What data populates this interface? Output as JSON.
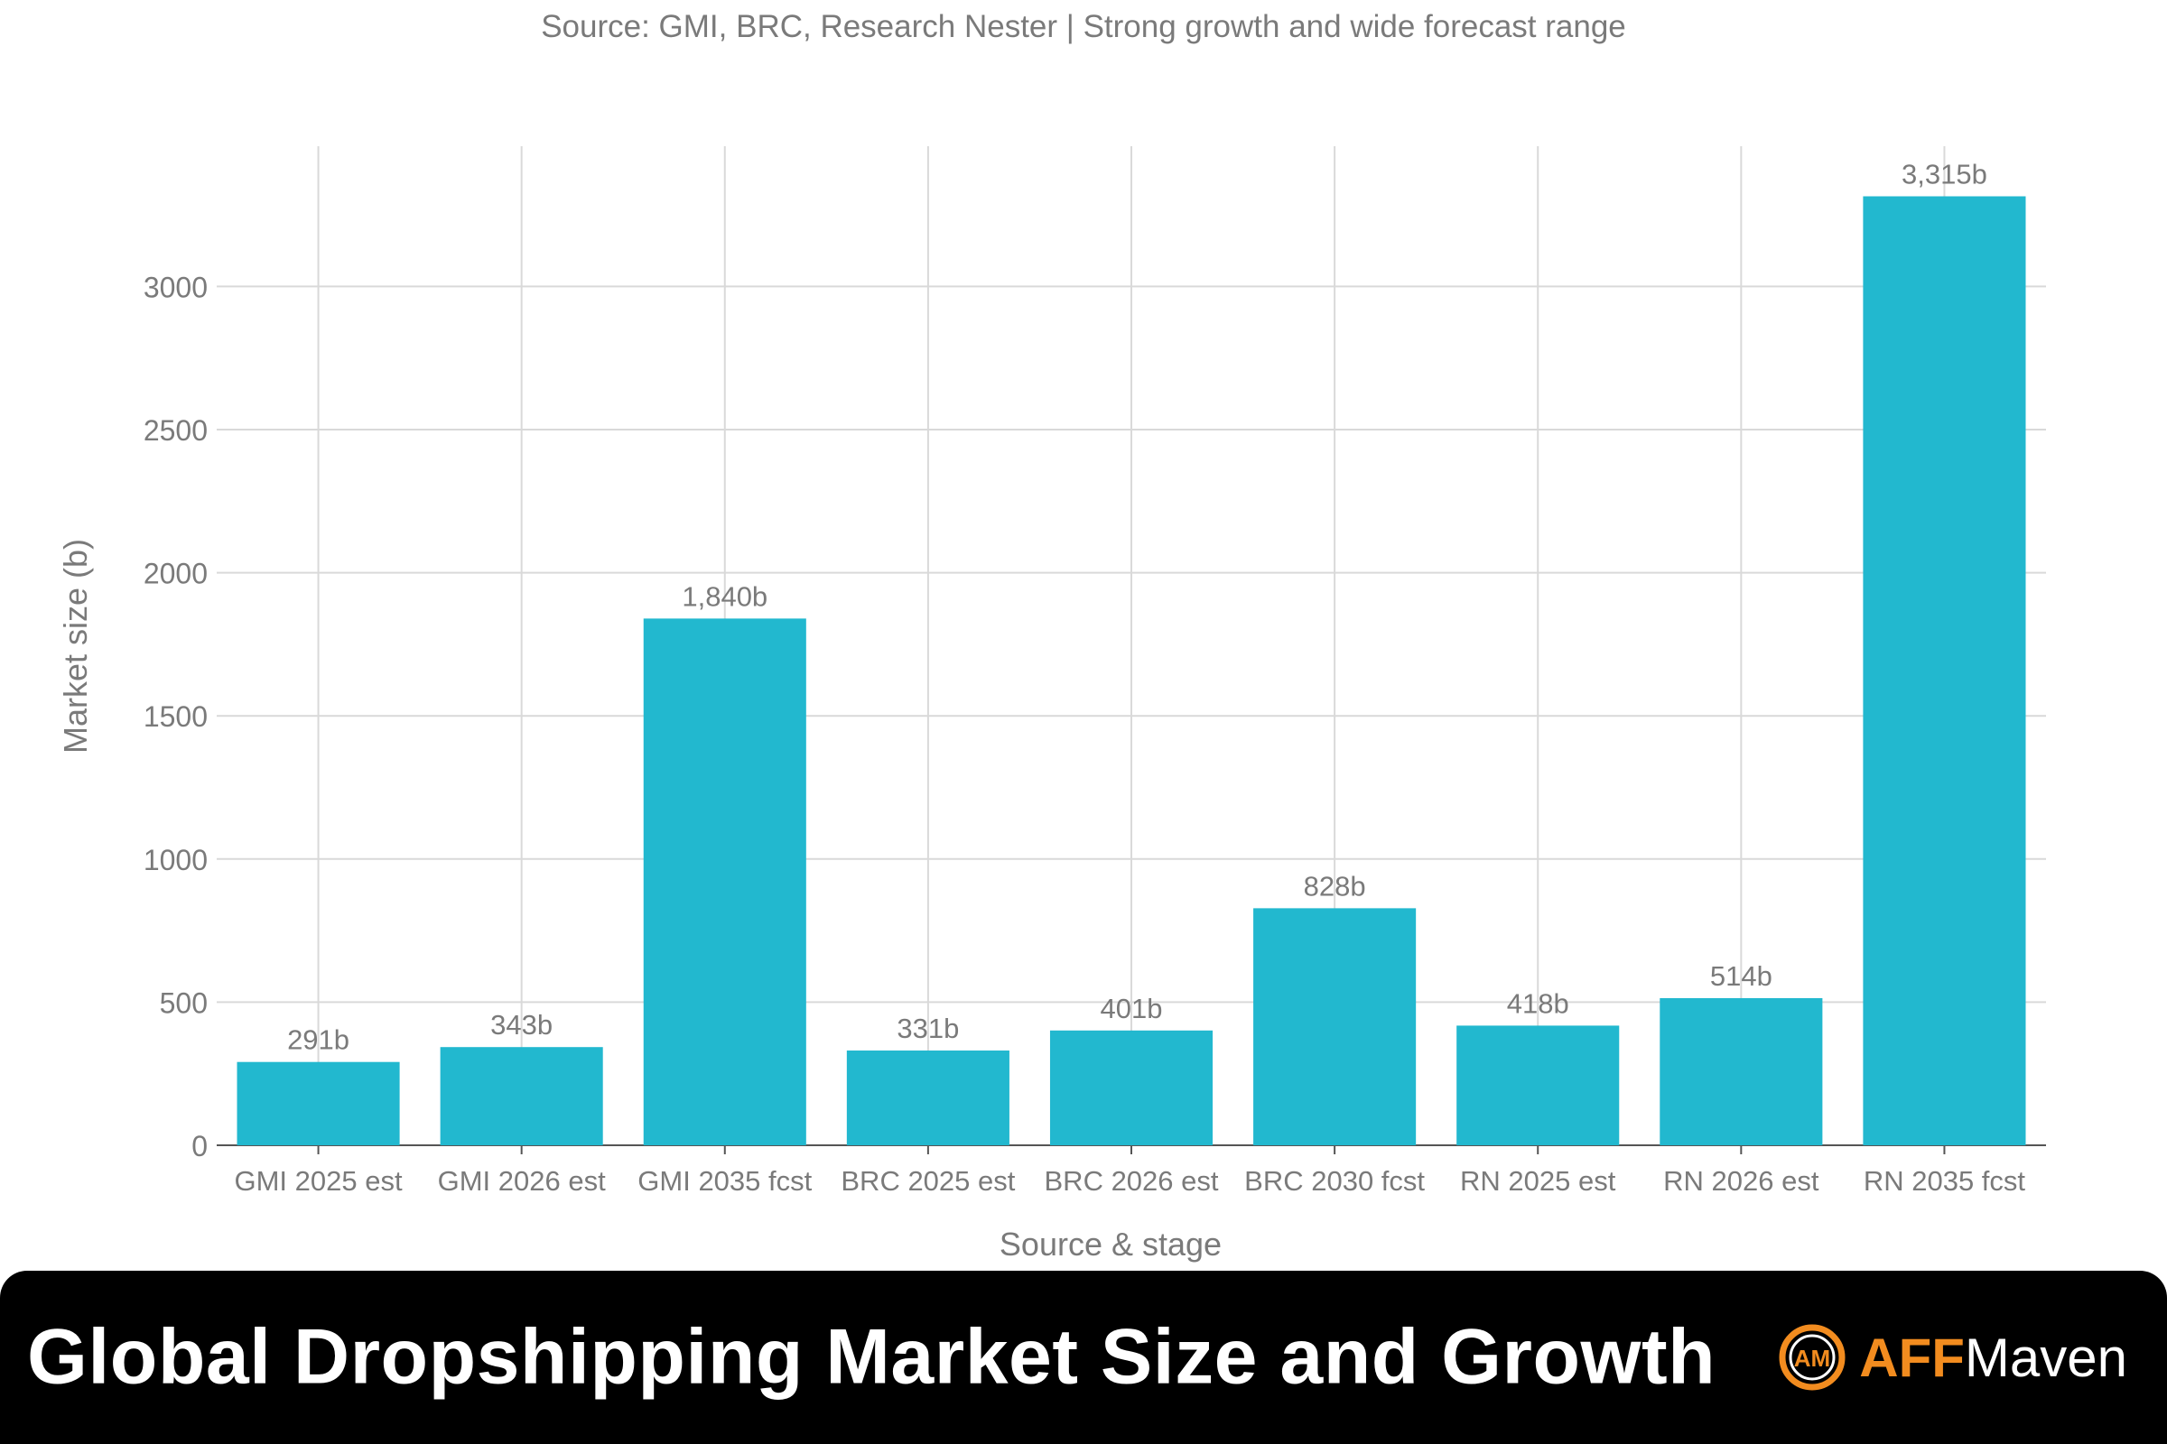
{
  "chart_data": {
    "type": "bar",
    "subtitle": "Source: GMI, BRC, Research Nester | Strong growth and wide forecast range",
    "xlabel": "Source & stage",
    "ylabel": "Market size (b)",
    "categories": [
      "GMI 2025 est",
      "GMI 2026 est",
      "GMI 2035 fcst",
      "BRC 2025 est",
      "BRC 2026 est",
      "BRC 2030 fcst",
      "RN 2025 est",
      "RN 2026 est",
      "RN 2035 fcst"
    ],
    "values": [
      291,
      343,
      1840,
      331,
      401,
      828,
      418,
      514,
      3315
    ],
    "data_labels": [
      "291b",
      "343b",
      "1,840b",
      "331b",
      "401b",
      "828b",
      "418b",
      "514b",
      "3,315b"
    ],
    "y_ticks": [
      0,
      500,
      1000,
      1500,
      2000,
      2500,
      3000
    ],
    "ylim": [
      0,
      3490
    ],
    "grid": true,
    "legend": "none",
    "bar_color": "#22b8cf"
  },
  "banner": {
    "title": "Global Dropshipping Market Size and Growth",
    "brand_mark": "AM",
    "brand_aff": "AFF",
    "brand_maven": "Maven"
  },
  "colors": {
    "banner_bg": "#000000",
    "brand_orange": "#f28c1f",
    "text_gray": "#7a7a7a",
    "grid": "#d9d9d9"
  }
}
